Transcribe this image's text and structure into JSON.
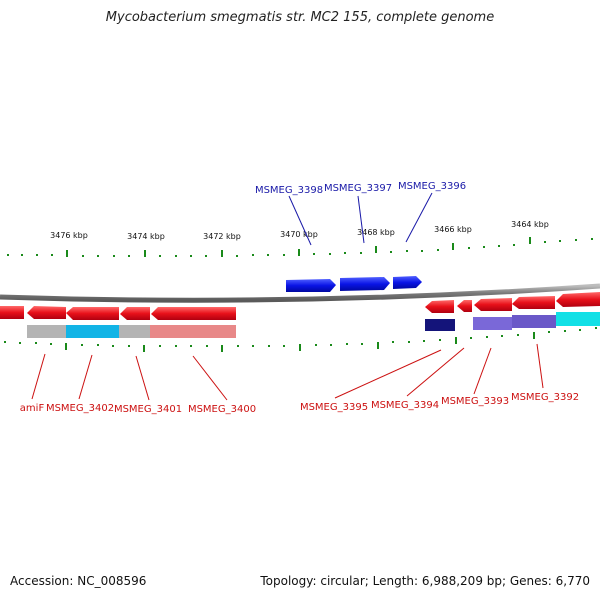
{
  "title": "Mycobacterium smegmatis str. MC2 155, complete genome",
  "accession": "Accession: NC_008596",
  "summary": "Topology: circular; Length: 6,988,209 bp; Genes: 6,770",
  "colors": {
    "forward_gene": "#0a14e6",
    "reverse_gene": "#e0101a",
    "backbone": "#8a8a8a",
    "tick": "#1a8a1a",
    "forward_label": "#1a1aa8",
    "reverse_label": "#cc1111"
  },
  "scale_labels": [
    "3476 kbp",
    "3474 kbp",
    "3472 kbp",
    "3470 kbp",
    "3468 kbp",
    "3466 kbp",
    "3464 kbp"
  ],
  "forward_genes": [
    "MSMEG_3398",
    "MSMEG_3397",
    "MSMEG_3396"
  ],
  "reverse_genes": [
    "amiF",
    "MSMEG_3402",
    "MSMEG_3401",
    "MSMEG_3400",
    "MSMEG_3395",
    "MSMEG_3394",
    "MSMEG_3393",
    "MSMEG_3392"
  ]
}
